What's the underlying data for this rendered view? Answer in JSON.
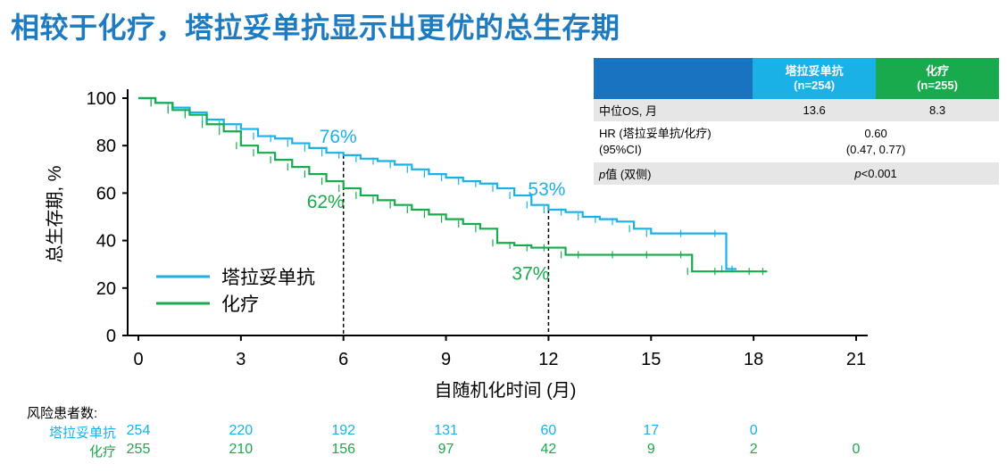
{
  "title": "相较于化疗，塔拉妥单抗显示出更优的总生存期",
  "colors": {
    "title": "#1f7bbf",
    "tarlatamab": "#1ab1e7",
    "chemo": "#1aaa4e",
    "table_dark": "#1a73c0"
  },
  "table": {
    "headers": {
      "c2a": "塔拉妥单抗",
      "c2b": "(n=254)",
      "c3a": "化疗",
      "c3b": "(n=255)"
    },
    "row1": {
      "label": "中位OS, 月",
      "v1": "13.6",
      "v2": "8.3"
    },
    "row2": {
      "label_a": "HR (塔拉妥单抗/化疗)",
      "label_b": "(95%CI)",
      "value_a": "0.60",
      "value_b": "(0.47, 0.77)"
    },
    "row3": {
      "label_italic": "p",
      "label_rest": "值 (双侧)",
      "value_italic": "p",
      "value_rest": "<0.001"
    }
  },
  "risk": {
    "title": "风险患者数:",
    "tarlatamab_label": "塔拉妥单抗",
    "chemo_label": "化疗",
    "tarlatamab": [
      "254",
      "220",
      "192",
      "131",
      "60",
      "17",
      "0",
      ""
    ],
    "chemo": [
      "255",
      "210",
      "156",
      "97",
      "42",
      "9",
      "2",
      "0"
    ]
  },
  "chart_data": {
    "type": "line",
    "xlabel": "自随机化时间 (月)",
    "ylabel": "总生存期, %",
    "xlim": [
      0,
      21
    ],
    "ylim": [
      0,
      100
    ],
    "xticks": [
      "0",
      "3",
      "6",
      "9",
      "12",
      "15",
      "18",
      "21"
    ],
    "yticks": [
      "0",
      "20",
      "40",
      "60",
      "80",
      "100"
    ],
    "legend_position": "bottom-left",
    "annotations": [
      {
        "text": "76%",
        "series": 0,
        "x": 6,
        "y": 76
      },
      {
        "text": "62%",
        "series": 1,
        "x": 6,
        "y": 62
      },
      {
        "text": "53%",
        "series": 0,
        "x": 12,
        "y": 53
      },
      {
        "text": "37%",
        "series": 1,
        "x": 12,
        "y": 37
      }
    ],
    "reference_lines_x": [
      6,
      12
    ],
    "series": [
      {
        "name": "塔拉妥单抗",
        "color": "#1ab1e7",
        "x": [
          0,
          0.5,
          1,
          1.5,
          2,
          2.5,
          3,
          3.5,
          4,
          4.5,
          5,
          5.5,
          6,
          6.5,
          7,
          7.5,
          8,
          8.5,
          9,
          9.5,
          10,
          10.5,
          11,
          11.5,
          12,
          12.5,
          13,
          13.5,
          14,
          14.5,
          15,
          16,
          17,
          17.2,
          17.5
        ],
        "y": [
          100,
          98,
          96,
          94,
          91,
          89,
          87,
          84,
          83,
          81,
          79,
          77,
          76,
          74.5,
          73.5,
          72,
          70,
          68,
          66.5,
          65,
          64,
          62,
          59,
          55,
          53,
          52,
          50,
          49,
          48,
          45,
          43,
          43,
          43,
          28,
          28
        ]
      },
      {
        "name": "化疗",
        "color": "#1aaa4e",
        "x": [
          0,
          0.5,
          1,
          1.5,
          2,
          2.5,
          3,
          3.5,
          4,
          4.5,
          5,
          5.5,
          6,
          6.5,
          7,
          7.5,
          8,
          8.5,
          9,
          9.5,
          10,
          10.5,
          11,
          11.5,
          12,
          12.5,
          13,
          14,
          15,
          16,
          16.2,
          17,
          18,
          18.4
        ],
        "y": [
          100,
          98,
          95,
          93,
          89,
          86,
          80,
          77,
          74,
          71,
          68,
          65,
          62,
          59,
          57,
          55,
          53,
          51,
          49,
          47,
          45,
          39,
          38,
          37,
          37,
          34,
          34,
          34,
          34,
          34,
          27,
          27,
          27,
          27
        ]
      }
    ]
  }
}
